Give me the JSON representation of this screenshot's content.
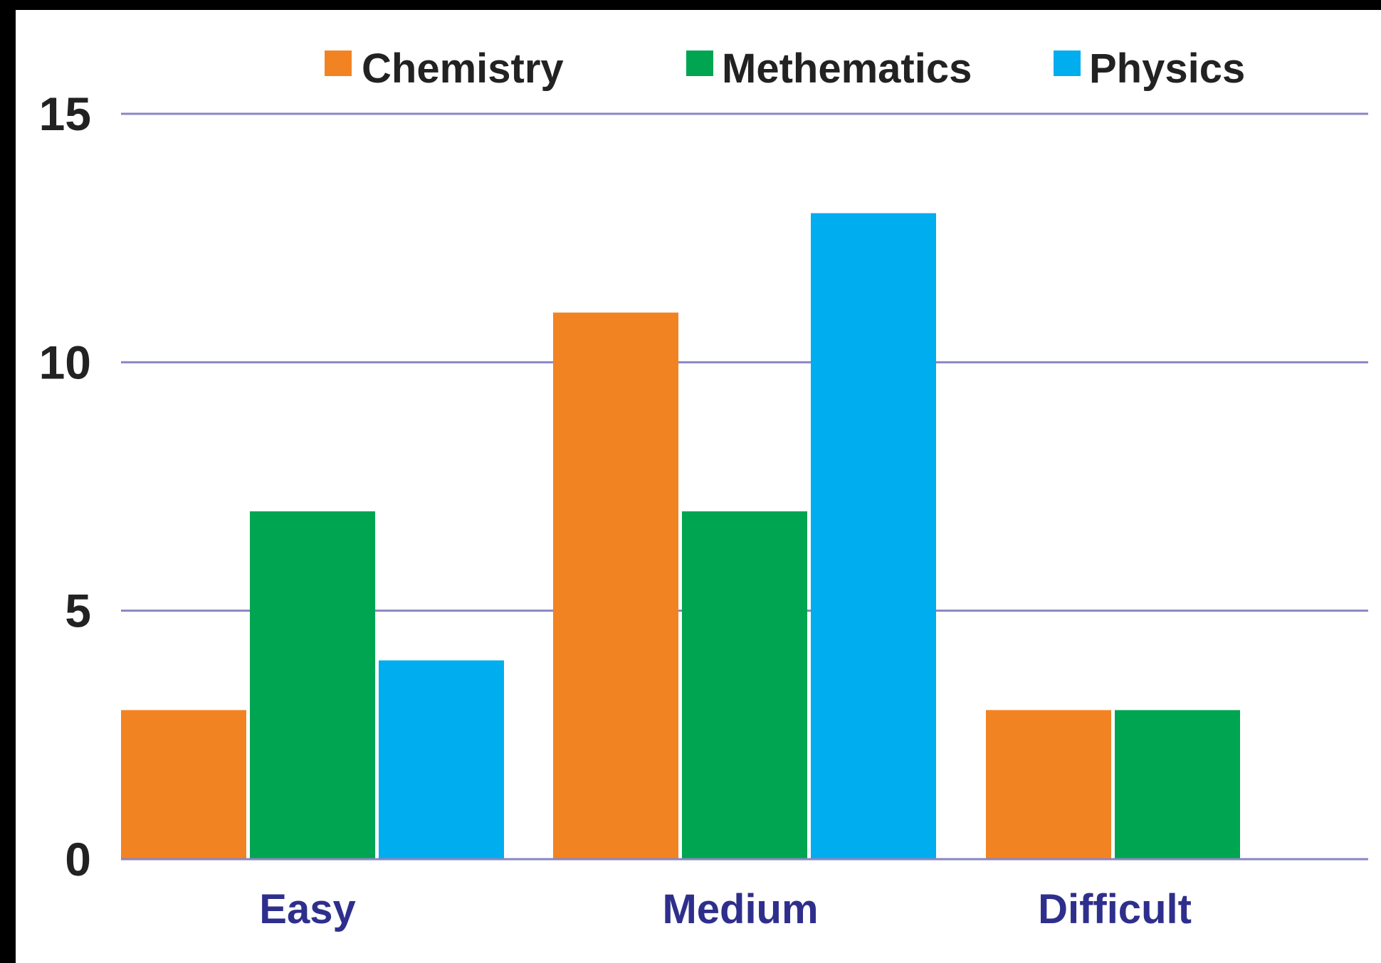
{
  "colors": {
    "background": "#ffffff",
    "frame": "#000000",
    "gridline": "#8a86c4",
    "category_label": "#2e2f8c",
    "tick_label": "#222222"
  },
  "chart_data": {
    "type": "bar",
    "categories": [
      "Easy",
      "Medium",
      "Difficult"
    ],
    "series": [
      {
        "name": "Chemistry",
        "color": "#f28322",
        "values": [
          3,
          11,
          3
        ]
      },
      {
        "name": "Methematics",
        "color": "#00a551",
        "values": [
          7,
          7,
          3
        ]
      },
      {
        "name": "Physics",
        "color": "#00adef",
        "values": [
          4,
          13,
          0
        ]
      }
    ],
    "yticks": [
      0,
      5,
      10,
      15
    ],
    "ylim": [
      0,
      15
    ],
    "grid": true,
    "legend_position": "top"
  }
}
